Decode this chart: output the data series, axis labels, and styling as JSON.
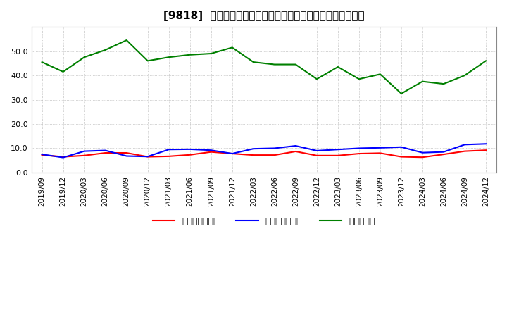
{
  "title": "[9818]  売上債権回転率、買入債務回転率、在庫回転率の推移",
  "x_labels": [
    "2019/09",
    "2019/12",
    "2020/03",
    "2020/06",
    "2020/09",
    "2020/12",
    "2021/03",
    "2021/06",
    "2021/09",
    "2021/12",
    "2022/03",
    "2022/06",
    "2022/09",
    "2022/12",
    "2023/03",
    "2023/06",
    "2023/09",
    "2023/12",
    "2024/03",
    "2024/06",
    "2024/09",
    "2024/12"
  ],
  "uriage": [
    7.2,
    6.5,
    7.0,
    8.1,
    8.1,
    6.5,
    6.7,
    7.3,
    8.5,
    7.8,
    7.2,
    7.2,
    8.7,
    7.0,
    7.0,
    7.8,
    8.0,
    6.5,
    6.3,
    7.5,
    8.8,
    9.2
  ],
  "kaiire": [
    7.5,
    6.2,
    8.8,
    9.1,
    6.8,
    6.6,
    9.5,
    9.6,
    9.2,
    7.8,
    9.8,
    10.0,
    11.0,
    9.0,
    9.5,
    10.0,
    10.2,
    10.5,
    8.2,
    8.5,
    11.5,
    11.8
  ],
  "zaiko": [
    45.5,
    41.5,
    47.5,
    50.5,
    54.5,
    46.0,
    47.5,
    48.5,
    49.0,
    51.5,
    45.5,
    44.5,
    44.5,
    38.5,
    43.5,
    38.5,
    40.5,
    32.5,
    37.5,
    36.5,
    40.0,
    46.0
  ],
  "uriage_color": "#ff0000",
  "kaiire_color": "#0000ff",
  "zaiko_color": "#008000",
  "ylim": [
    0,
    60
  ],
  "yticks": [
    0.0,
    10.0,
    20.0,
    30.0,
    40.0,
    50.0
  ],
  "background_color": "#ffffff",
  "plot_bg_color": "#ffffff",
  "grid_color": "#aaaaaa",
  "legend_uriage": "売上債権回転率",
  "legend_kaiire": "買入債務回転率",
  "legend_zaiko": "在庫回転率"
}
